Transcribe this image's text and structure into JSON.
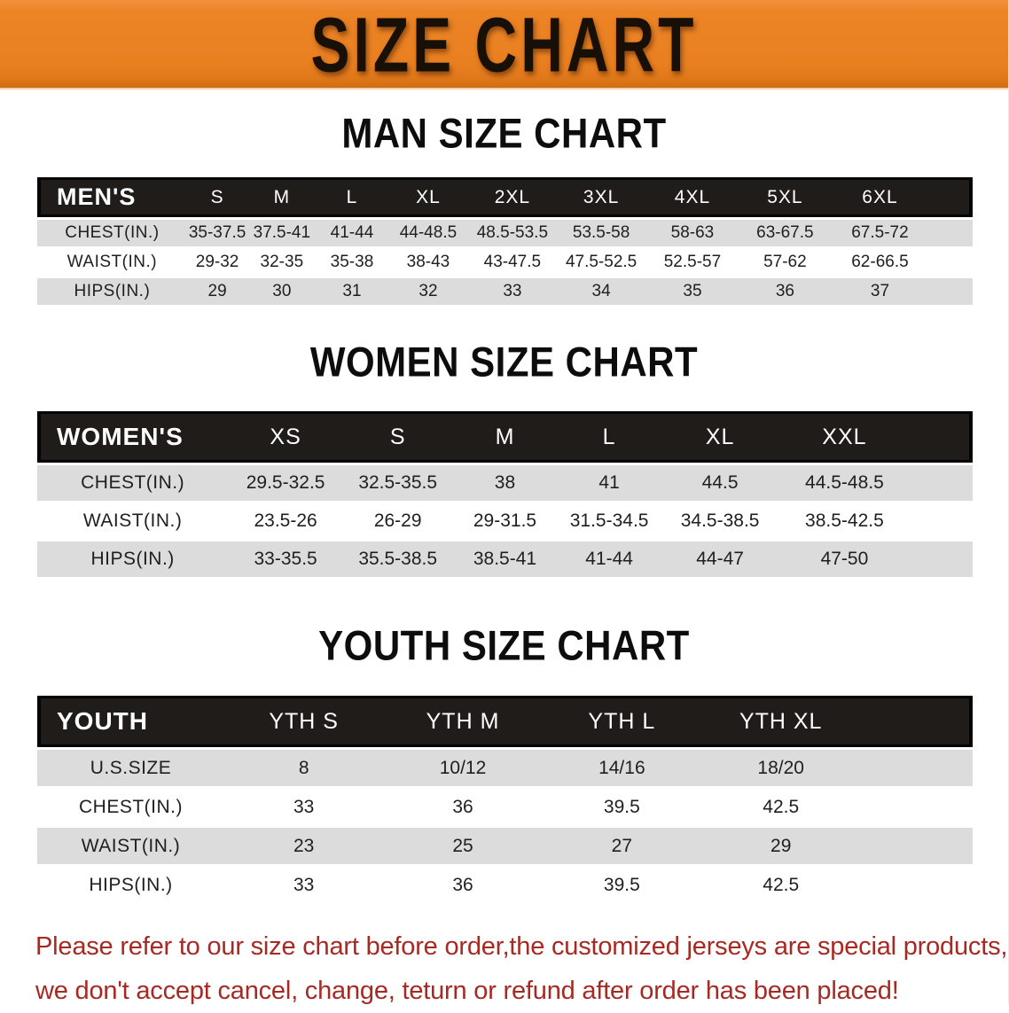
{
  "banner": {
    "title": "SIZE CHART"
  },
  "sections": [
    {
      "heading": "MAN SIZE CHART",
      "table": {
        "corner_label": "MEN'S",
        "size_headers": [
          "S",
          "M",
          "L",
          "XL",
          "2XL",
          "3XL",
          "4XL",
          "5XL",
          "6XL"
        ],
        "rows": [
          {
            "label": "CHEST(IN.)",
            "values": [
              "35-37.5",
              "37.5-41",
              "41-44",
              "44-48.5",
              "48.5-53.5",
              "53.5-58",
              "58-63",
              "63-67.5",
              "67.5-72"
            ]
          },
          {
            "label": "WAIST(IN.)",
            "values": [
              "29-32",
              "32-35",
              "35-38",
              "38-43",
              "43-47.5",
              "47.5-52.5",
              "52.5-57",
              "57-62",
              "62-66.5"
            ]
          },
          {
            "label": "HIPS(IN.)",
            "values": [
              "29",
              "30",
              "31",
              "32",
              "33",
              "34",
              "35",
              "36",
              "37"
            ]
          }
        ]
      }
    },
    {
      "heading": "WOMEN SIZE CHART",
      "table": {
        "corner_label": "WOMEN'S",
        "size_headers": [
          "XS",
          "S",
          "M",
          "L",
          "XL",
          "XXL"
        ],
        "rows": [
          {
            "label": "CHEST(IN.)",
            "values": [
              "29.5-32.5",
              "32.5-35.5",
              "38",
              "41",
              "44.5",
              "44.5-48.5"
            ]
          },
          {
            "label": "WAIST(IN.)",
            "values": [
              "23.5-26",
              "26-29",
              "29-31.5",
              "31.5-34.5",
              "34.5-38.5",
              "38.5-42.5"
            ]
          },
          {
            "label": "HIPS(IN.)",
            "values": [
              "33-35.5",
              "35.5-38.5",
              "38.5-41",
              "41-44",
              "44-47",
              "47-50"
            ]
          }
        ]
      }
    },
    {
      "heading": "YOUTH SIZE CHART",
      "table": {
        "corner_label": "YOUTH",
        "size_headers": [
          "YTH S",
          "YTH M",
          "YTH L",
          "YTH XL"
        ],
        "rows": [
          {
            "label": "U.S.SIZE",
            "values": [
              "8",
              "10/12",
              "14/16",
              "18/20"
            ]
          },
          {
            "label": "CHEST(IN.)",
            "values": [
              "33",
              "36",
              "39.5",
              "42.5"
            ]
          },
          {
            "label": "WAIST(IN.)",
            "values": [
              "23",
              "25",
              "27",
              "29"
            ]
          },
          {
            "label": "HIPS(IN.)",
            "values": [
              "33",
              "36",
              "39.5",
              "42.5"
            ]
          }
        ]
      }
    }
  ],
  "footer": {
    "lines": [
      "Please refer to our size chart before order,the customized jerseys are special products,",
      "we don't accept cancel, change, teturn or refund after order has been placed!"
    ]
  },
  "colors": {
    "banner_orange": "#E98020",
    "header_black": "#201C1A",
    "row_gray": "#DCDCDC",
    "footer_red": "#A62A23"
  }
}
